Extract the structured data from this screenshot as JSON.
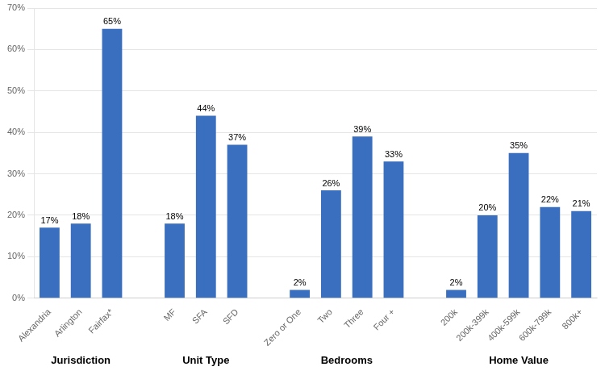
{
  "chart_data": {
    "type": "bar",
    "color": "#3A6EBF",
    "ylim": [
      0,
      70
    ],
    "yticks": [
      {
        "value": 0,
        "label": "0%"
      },
      {
        "value": 10,
        "label": "10%"
      },
      {
        "value": 20,
        "label": "20%"
      },
      {
        "value": 30,
        "label": "30%"
      },
      {
        "value": 40,
        "label": "40%"
      },
      {
        "value": 50,
        "label": "50%"
      },
      {
        "value": 60,
        "label": "60%"
      },
      {
        "value": 70,
        "label": "70%"
      }
    ],
    "grid": true,
    "data_labels": true,
    "groups": [
      {
        "label": "Jurisdiction",
        "categories": [
          "Alexandria",
          "Arlington",
          "Fairfax*"
        ],
        "values": [
          17,
          18,
          65
        ],
        "value_labels": [
          "17%",
          "18%",
          "65%"
        ]
      },
      {
        "label": "Unit Type",
        "categories": [
          "MF",
          "SFA",
          "SFD"
        ],
        "values": [
          18,
          44,
          37
        ],
        "value_labels": [
          "18%",
          "44%",
          "37%"
        ]
      },
      {
        "label": "Bedrooms",
        "categories": [
          "Zero or One",
          "Two",
          "Three",
          "Four +"
        ],
        "values": [
          2,
          26,
          39,
          33
        ],
        "value_labels": [
          "2%",
          "26%",
          "39%",
          "33%"
        ]
      },
      {
        "label": "Home Value",
        "categories": [
          "200k",
          "200k-399k",
          "400k-599k",
          "600k-799k",
          "800k+"
        ],
        "values": [
          2,
          20,
          35,
          22,
          21
        ],
        "value_labels": [
          "2%",
          "20%",
          "35%",
          "22%",
          "21%"
        ]
      }
    ]
  }
}
